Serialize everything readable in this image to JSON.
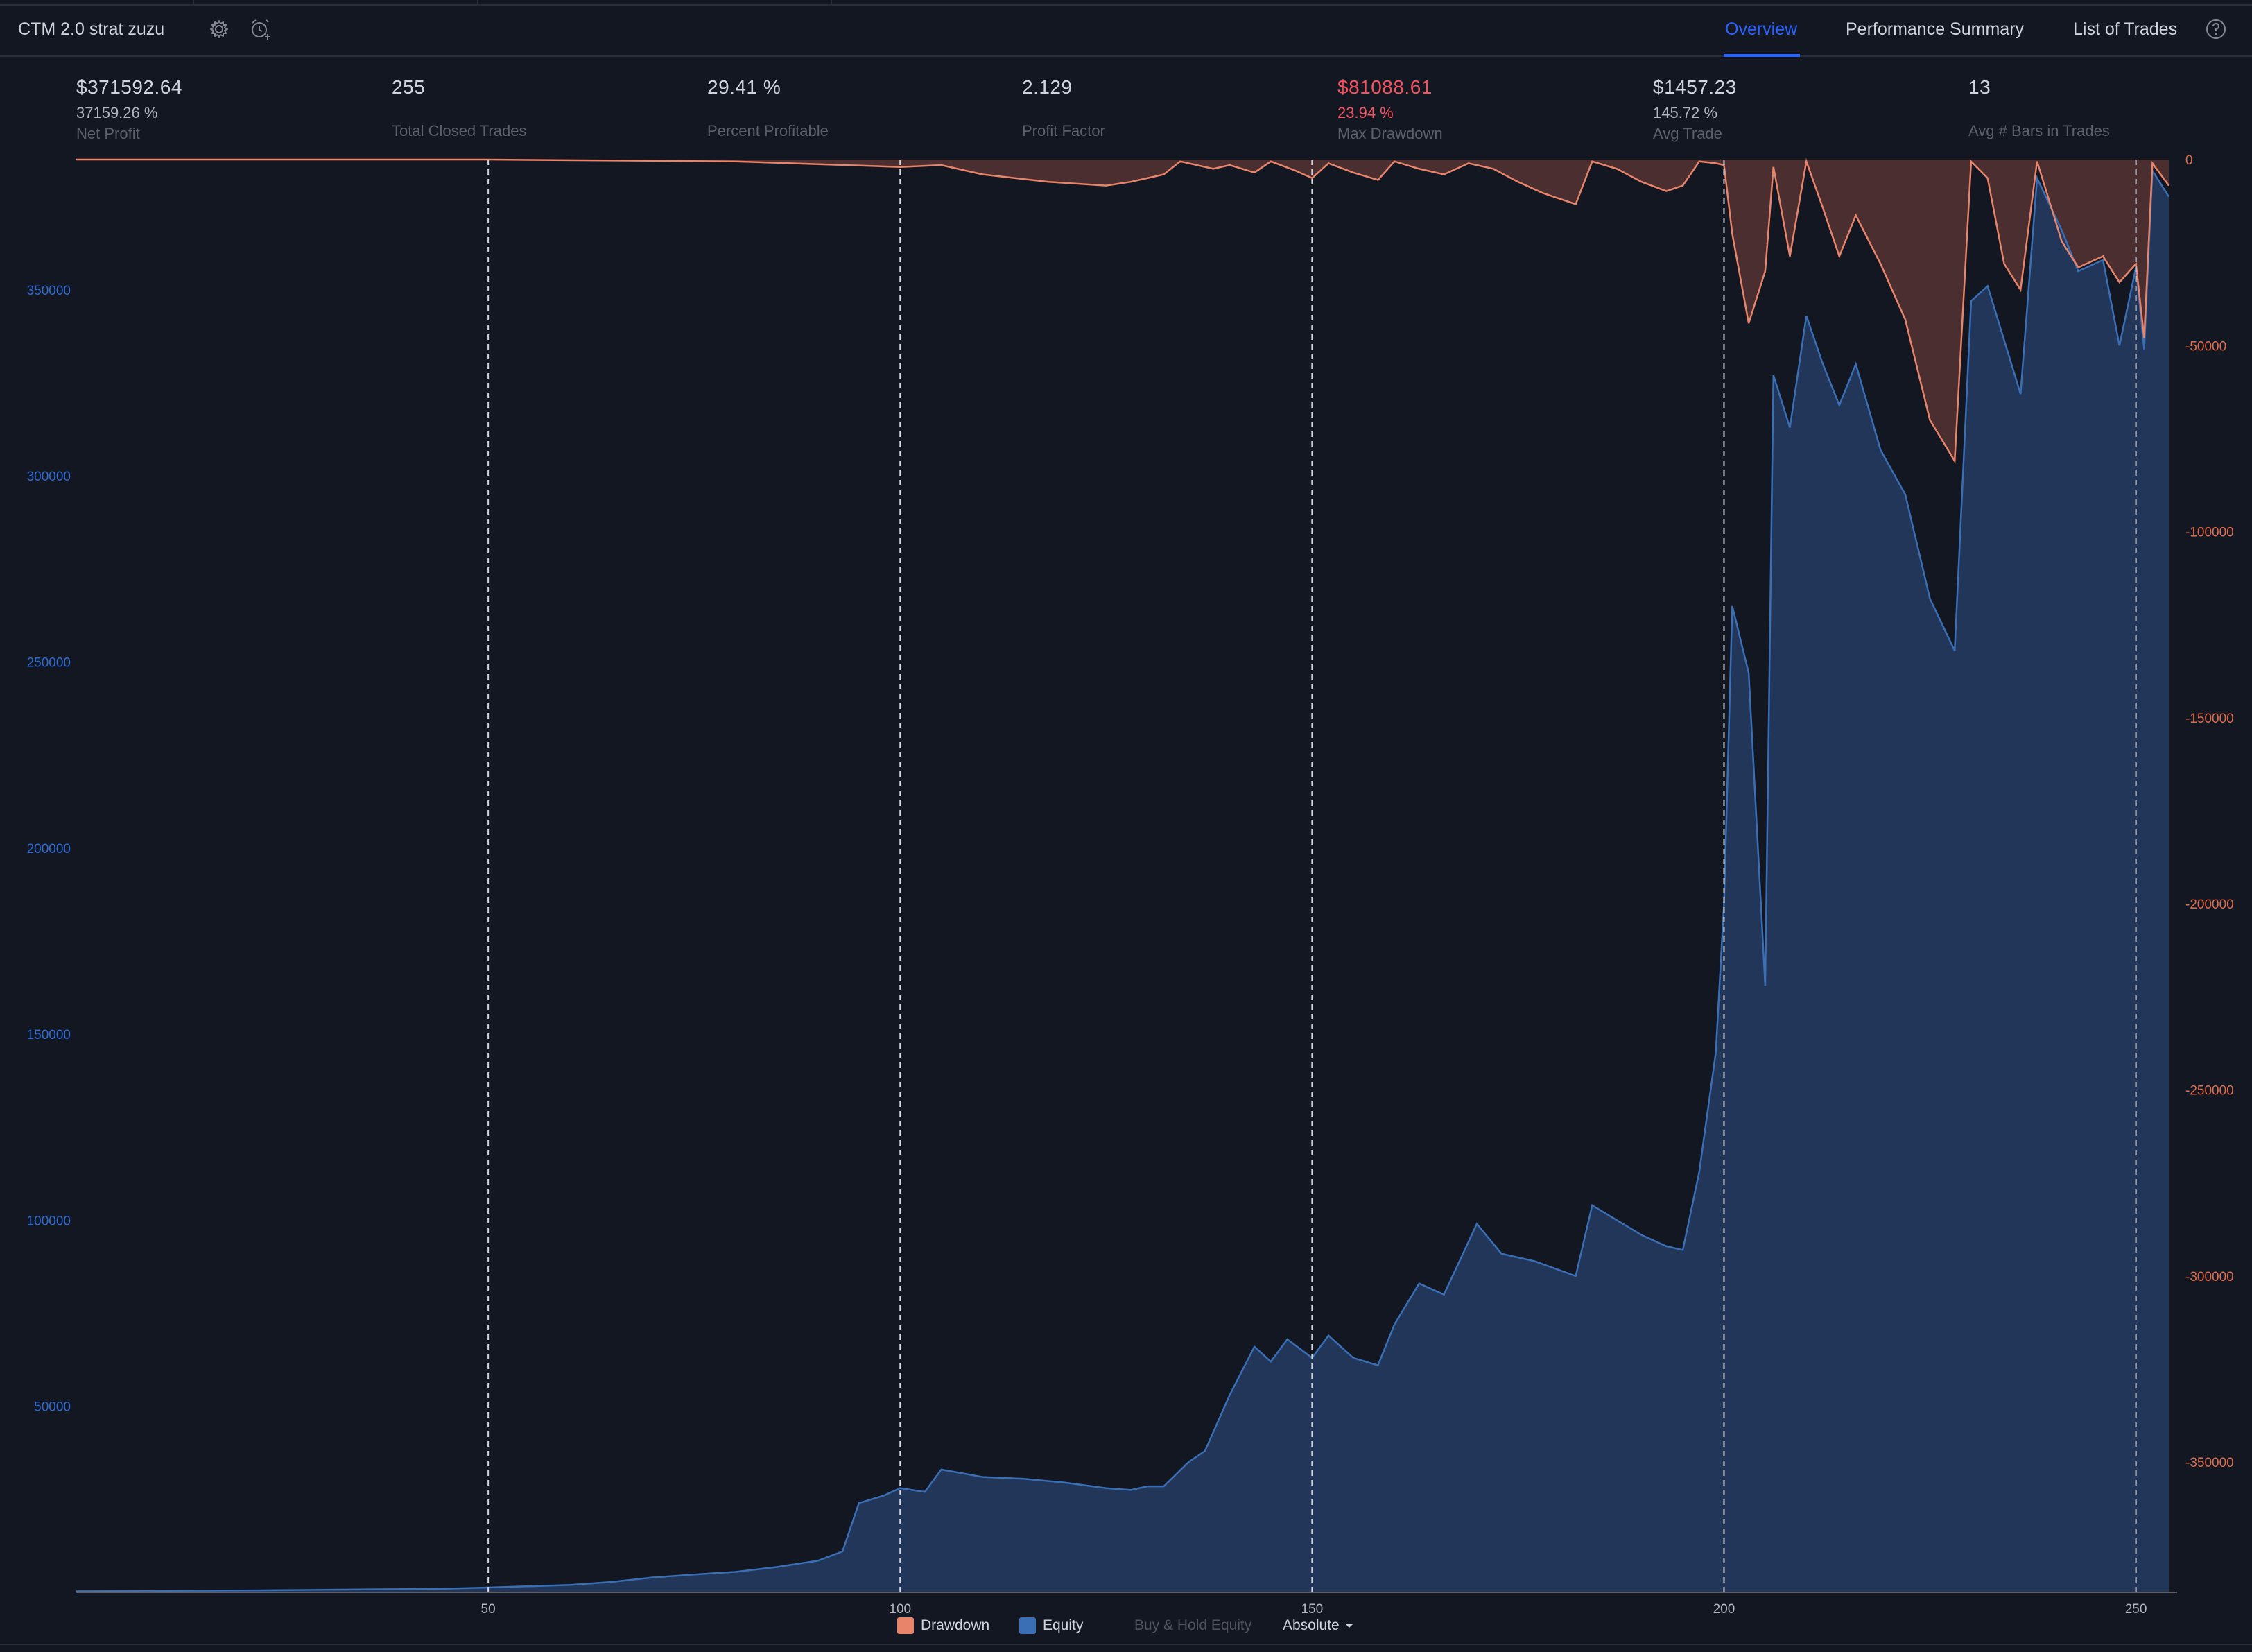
{
  "app": {
    "strategy_name": "CTM 2.0 strat zuzu",
    "icons": [
      "gear-icon",
      "alarm-add-icon",
      "help-icon"
    ]
  },
  "tabs": [
    {
      "label": "Overview",
      "active": true
    },
    {
      "label": "Performance Summary",
      "active": false
    },
    {
      "label": "List of Trades",
      "active": false
    }
  ],
  "stats": [
    {
      "value": "$371592.64",
      "sub": "37159.26 %",
      "label": "Net Profit"
    },
    {
      "value": "255",
      "sub": "",
      "label": "Total Closed Trades"
    },
    {
      "value": "29.41 %",
      "sub": "",
      "label": "Percent Profitable"
    },
    {
      "value": "2.129",
      "sub": "",
      "label": "Profit Factor"
    },
    {
      "value": "$81088.61",
      "sub": "23.94 %",
      "label": "Max Drawdown",
      "negative": true
    },
    {
      "value": "$1457.23",
      "sub": "145.72 %",
      "label": "Avg Trade"
    },
    {
      "value": "13",
      "sub": "",
      "label": "Avg # Bars in Trades"
    }
  ],
  "legend": {
    "drawdown": "Drawdown",
    "equity": "Equity",
    "buy_hold": "Buy & Hold Equity",
    "mode": "Absolute"
  },
  "colors": {
    "background": "#131722",
    "equity_line": "#3a6fb5",
    "equity_fill": "#22365a",
    "drawdown_line": "#e8846a",
    "drawdown_fill": "#4a2e30",
    "accent": "#2962ff",
    "negative": "#f7525f",
    "left_axis_text": "#2f6bd3",
    "right_axis_text": "#e06c4c"
  },
  "chart_data": {
    "type": "area",
    "x_ticks": [
      50,
      100,
      150,
      200,
      250
    ],
    "xlim": [
      0,
      255
    ],
    "y_left_ticks": [
      50000,
      100000,
      150000,
      200000,
      250000,
      300000,
      350000
    ],
    "y_left_tick_labels": [
      "50000",
      "100000",
      "150000",
      "200000",
      "250000",
      "300000",
      "350000"
    ],
    "y_left_lim": [
      0,
      385000
    ],
    "y_right_ticks": [
      0,
      -50000,
      -100000,
      -150000,
      -200000,
      -250000,
      -300000,
      -350000
    ],
    "y_right_tick_labels": [
      "0",
      "-50000",
      "-100000",
      "-150000",
      "-200000",
      "-250000",
      "-300000",
      "-350000"
    ],
    "y_right_lim": [
      -385000,
      0
    ],
    "vertical_dashed_lines_at": [
      50,
      100,
      150,
      200,
      250
    ],
    "series": [
      {
        "name": "Equity",
        "axis": "left",
        "points": [
          [
            0,
            300
          ],
          [
            10,
            400
          ],
          [
            20,
            500
          ],
          [
            30,
            700
          ],
          [
            40,
            900
          ],
          [
            45,
            1000
          ],
          [
            50,
            1300
          ],
          [
            60,
            2000
          ],
          [
            65,
            2800
          ],
          [
            70,
            4000
          ],
          [
            75,
            4800
          ],
          [
            80,
            5500
          ],
          [
            85,
            6800
          ],
          [
            90,
            8500
          ],
          [
            93,
            11000
          ],
          [
            95,
            24000
          ],
          [
            98,
            26000
          ],
          [
            100,
            28000
          ],
          [
            103,
            27000
          ],
          [
            105,
            33000
          ],
          [
            110,
            31000
          ],
          [
            115,
            30500
          ],
          [
            120,
            29500
          ],
          [
            125,
            28000
          ],
          [
            128,
            27500
          ],
          [
            130,
            28500
          ],
          [
            132,
            28500
          ],
          [
            135,
            35000
          ],
          [
            137,
            38000
          ],
          [
            140,
            53000
          ],
          [
            143,
            66000
          ],
          [
            145,
            62000
          ],
          [
            147,
            68000
          ],
          [
            150,
            63000
          ],
          [
            152,
            69000
          ],
          [
            155,
            63000
          ],
          [
            158,
            61000
          ],
          [
            160,
            72000
          ],
          [
            163,
            83000
          ],
          [
            166,
            80000
          ],
          [
            170,
            99000
          ],
          [
            173,
            91000
          ],
          [
            177,
            89000
          ],
          [
            182,
            85000
          ],
          [
            184,
            104000
          ],
          [
            187,
            100000
          ],
          [
            190,
            96000
          ],
          [
            193,
            93000
          ],
          [
            195,
            92000
          ],
          [
            197,
            113000
          ],
          [
            199,
            145000
          ],
          [
            200,
            185000
          ],
          [
            201,
            265000
          ],
          [
            203,
            247000
          ],
          [
            205,
            163000
          ],
          [
            206,
            327000
          ],
          [
            208,
            313000
          ],
          [
            210,
            343000
          ],
          [
            212,
            330000
          ],
          [
            214,
            319000
          ],
          [
            216,
            330000
          ],
          [
            219,
            307000
          ],
          [
            222,
            295000
          ],
          [
            225,
            267000
          ],
          [
            228,
            253000
          ],
          [
            230,
            347000
          ],
          [
            232,
            351000
          ],
          [
            236,
            322000
          ],
          [
            238,
            380000
          ],
          [
            241,
            366000
          ],
          [
            243,
            355000
          ],
          [
            246,
            358000
          ],
          [
            248,
            335000
          ],
          [
            250,
            356000
          ],
          [
            251,
            334000
          ],
          [
            252,
            382000
          ],
          [
            254,
            375000
          ]
        ]
      },
      {
        "name": "Drawdown",
        "axis": "right",
        "points": [
          [
            0,
            0
          ],
          [
            50,
            0
          ],
          [
            80,
            -500
          ],
          [
            100,
            -2000
          ],
          [
            105,
            -1500
          ],
          [
            110,
            -4000
          ],
          [
            118,
            -6000
          ],
          [
            125,
            -7000
          ],
          [
            128,
            -6000
          ],
          [
            132,
            -4000
          ],
          [
            134,
            -500
          ],
          [
            138,
            -2500
          ],
          [
            140,
            -1500
          ],
          [
            143,
            -3500
          ],
          [
            145,
            -500
          ],
          [
            148,
            -3000
          ],
          [
            150,
            -5000
          ],
          [
            152,
            -1000
          ],
          [
            155,
            -3500
          ],
          [
            158,
            -5500
          ],
          [
            160,
            -500
          ],
          [
            163,
            -2500
          ],
          [
            166,
            -4000
          ],
          [
            169,
            -1000
          ],
          [
            172,
            -2500
          ],
          [
            175,
            -6000
          ],
          [
            178,
            -9000
          ],
          [
            182,
            -12000
          ],
          [
            184,
            -500
          ],
          [
            187,
            -2500
          ],
          [
            190,
            -6000
          ],
          [
            193,
            -8500
          ],
          [
            195,
            -7000
          ],
          [
            197,
            -500
          ],
          [
            199,
            -1000
          ],
          [
            200,
            -1500
          ],
          [
            201,
            -20000
          ],
          [
            203,
            -44000
          ],
          [
            205,
            -30000
          ],
          [
            206,
            -2000
          ],
          [
            208,
            -26000
          ],
          [
            210,
            -500
          ],
          [
            212,
            -13000
          ],
          [
            214,
            -26000
          ],
          [
            216,
            -15000
          ],
          [
            219,
            -28000
          ],
          [
            222,
            -43000
          ],
          [
            225,
            -70000
          ],
          [
            228,
            -81000
          ],
          [
            230,
            -500
          ],
          [
            232,
            -5000
          ],
          [
            234,
            -28000
          ],
          [
            236,
            -35000
          ],
          [
            238,
            -500
          ],
          [
            241,
            -22000
          ],
          [
            243,
            -29000
          ],
          [
            246,
            -26000
          ],
          [
            248,
            -33000
          ],
          [
            250,
            -28000
          ],
          [
            251,
            -48000
          ],
          [
            252,
            -1000
          ],
          [
            254,
            -7000
          ]
        ]
      }
    ]
  }
}
